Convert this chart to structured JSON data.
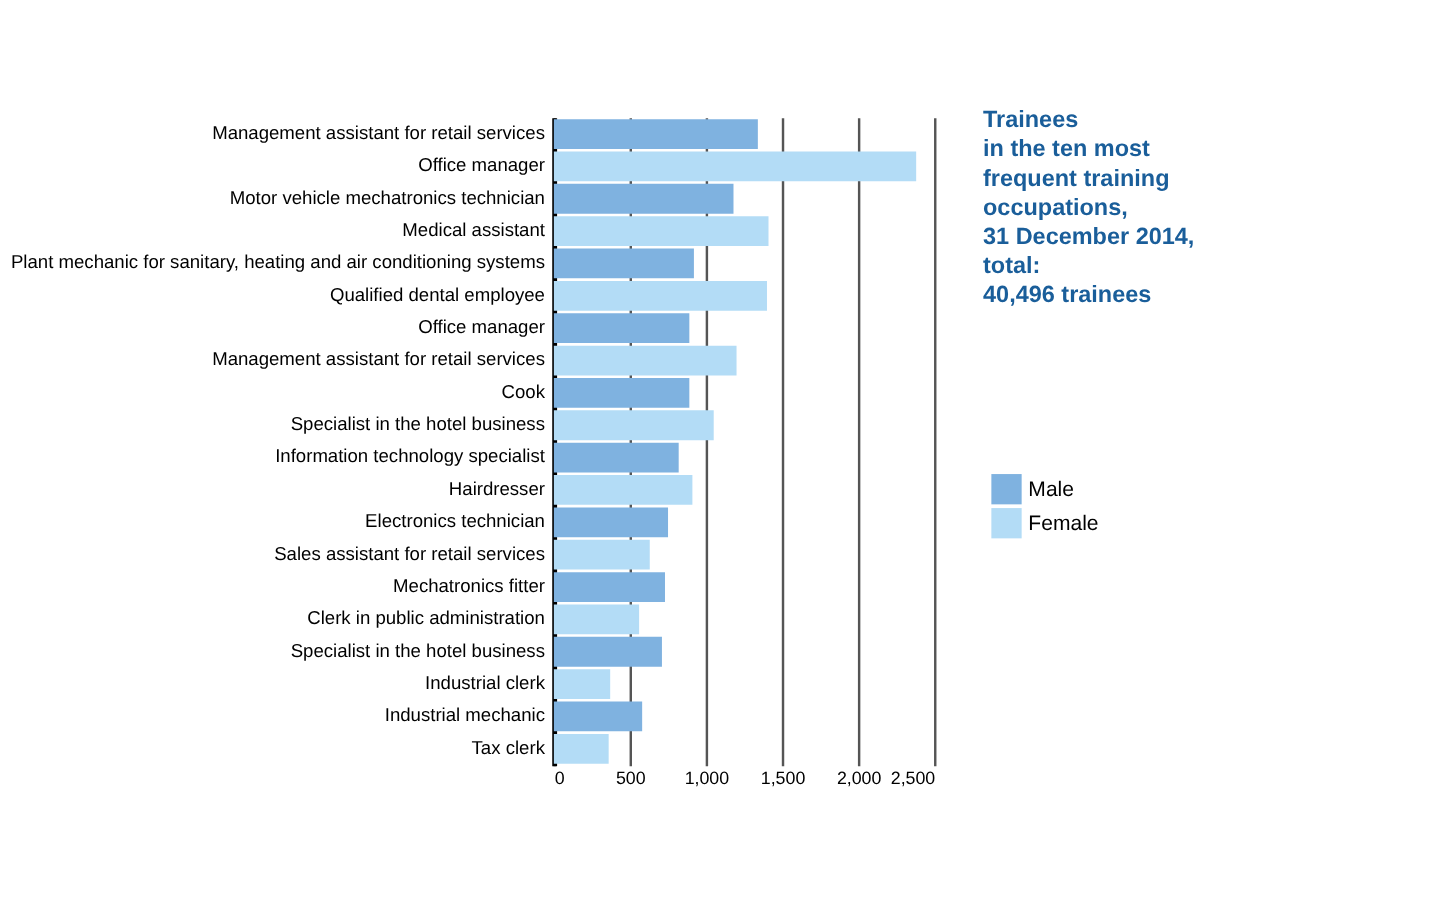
{
  "chart_data": {
    "type": "bar",
    "orientation": "horizontal",
    "title": "Trainees\nin the ten most\nfrequent training\noccupations,\n31 December 2014,\ntotal:\n40,496 trainees",
    "categories": [
      "Management assistant for retail services",
      "Office manager",
      "Motor vehicle mechatronics technician",
      "Medical assistant",
      "Plant mechanic for sanitary, heating and air conditioning systems",
      "Qualified dental employee",
      "Office manager",
      "Management assistant for retail services",
      "Cook",
      "Specialist in the hotel business",
      "Information technology specialist",
      "Hairdresser",
      "Electronics technician",
      "Sales assistant for retail services",
      "Mechatronics fitter",
      "Clerk in public administration",
      "Specialist in the hotel business",
      "Industrial clerk",
      "Industrial mechanic",
      "Tax clerk"
    ],
    "series": [
      {
        "name": "Male",
        "color": "#7fb2e0",
        "values": [
          1340,
          null,
          1180,
          null,
          920,
          null,
          890,
          null,
          890,
          null,
          820,
          null,
          750,
          null,
          730,
          null,
          710,
          null,
          580,
          null
        ]
      },
      {
        "name": "Female",
        "color": "#b3dcf6",
        "values": [
          null,
          2380,
          null,
          1410,
          null,
          1400,
          null,
          1200,
          null,
          1050,
          null,
          910,
          null,
          630,
          null,
          560,
          null,
          370,
          null,
          360
        ]
      }
    ],
    "xlim": [
      0,
      2500
    ],
    "xticks": [
      0,
      500,
      {
        "value": 1000,
        "label": "1,000"
      },
      {
        "value": 1500,
        "label": "1,500"
      },
      {
        "value": 2000,
        "label": "2,000"
      },
      {
        "value": 2500,
        "label": "2,500"
      }
    ],
    "grid": "x",
    "legend": "right"
  }
}
